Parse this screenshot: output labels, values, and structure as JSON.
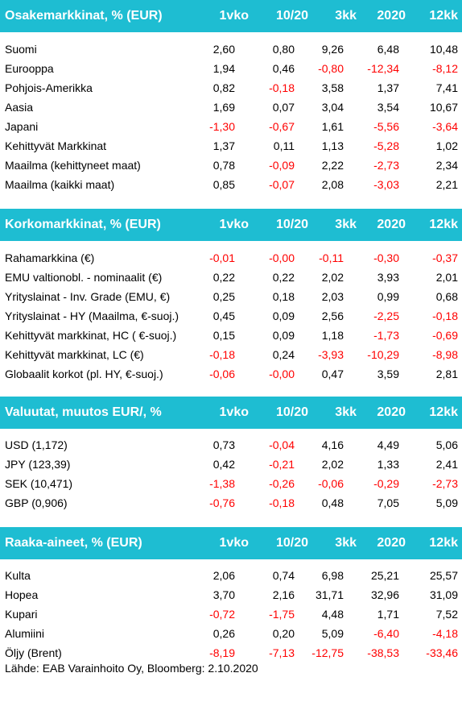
{
  "sections": [
    {
      "title": "Osakemarkkinat, % (EUR)",
      "columns": [
        "1vko",
        "10/20",
        "3kk",
        "2020",
        "12kk"
      ],
      "rows": [
        {
          "label": "Suomi",
          "values": [
            "2,60",
            "0,80",
            "9,26",
            "6,48",
            "10,48"
          ]
        },
        {
          "label": "Eurooppa",
          "values": [
            "1,94",
            "0,46",
            "-0,80",
            "-12,34",
            "-8,12"
          ]
        },
        {
          "label": "Pohjois-Amerikka",
          "values": [
            "0,82",
            "-0,18",
            "3,58",
            "1,37",
            "7,41"
          ]
        },
        {
          "label": "Aasia",
          "values": [
            "1,69",
            "0,07",
            "3,04",
            "3,54",
            "10,67"
          ]
        },
        {
          "label": "Japani",
          "values": [
            "-1,30",
            "-0,67",
            "1,61",
            "-5,56",
            "-3,64"
          ]
        },
        {
          "label": "Kehittyvät Markkinat",
          "values": [
            "1,37",
            "0,11",
            "1,13",
            "-5,28",
            "1,02"
          ]
        },
        {
          "label": "Maailma (kehittyneet maat)",
          "values": [
            "0,78",
            "-0,09",
            "2,22",
            "-2,73",
            "2,34"
          ]
        },
        {
          "label": "Maailma (kaikki maat)",
          "values": [
            "0,85",
            "-0,07",
            "2,08",
            "-3,03",
            "2,21"
          ]
        }
      ]
    },
    {
      "title": "Korkomarkkinat, % (EUR)",
      "columns": [
        "1vko",
        "10/20",
        "3kk",
        "2020",
        "12kk"
      ],
      "rows": [
        {
          "label": "Rahamarkkina (€)",
          "values": [
            "-0,01",
            "-0,00",
            "-0,11",
            "-0,30",
            "-0,37"
          ]
        },
        {
          "label": "EMU valtionobl. - nominaalit (€)",
          "values": [
            "0,22",
            "0,22",
            "2,02",
            "3,93",
            "2,01"
          ]
        },
        {
          "label": "Yrityslainat - Inv. Grade (EMU, €)",
          "values": [
            "0,25",
            "0,18",
            "2,03",
            "0,99",
            "0,68"
          ]
        },
        {
          "label": "Yrityslainat - HY (Maailma, €-suoj.)",
          "values": [
            "0,45",
            "0,09",
            "2,56",
            "-2,25",
            "-0,18"
          ]
        },
        {
          "label": "Kehittyvät markkinat, HC ( €-suoj.)",
          "values": [
            "0,15",
            "0,09",
            "1,18",
            "-1,73",
            "-0,69"
          ]
        },
        {
          "label": "Kehittyvät markkinat, LC (€)",
          "values": [
            "-0,18",
            "0,24",
            "-3,93",
            "-10,29",
            "-8,98"
          ]
        },
        {
          "label": "Globaalit korkot (pl. HY,  €-suoj.)",
          "values": [
            "-0,06",
            "-0,00",
            "0,47",
            "3,59",
            "2,81"
          ]
        }
      ]
    },
    {
      "title": "Valuutat, muutos EUR/,  %",
      "columns": [
        "1vko",
        "10/20",
        "3kk",
        "2020",
        "12kk"
      ],
      "rows": [
        {
          "label": "USD (1,172)",
          "values": [
            "0,73",
            "-0,04",
            "4,16",
            "4,49",
            "5,06"
          ]
        },
        {
          "label": "JPY (123,39)",
          "values": [
            "0,42",
            "-0,21",
            "2,02",
            "1,33",
            "2,41"
          ]
        },
        {
          "label": "SEK (10,471)",
          "values": [
            "-1,38",
            "-0,26",
            "-0,06",
            "-0,29",
            "-2,73"
          ]
        },
        {
          "label": "GBP (0,906)",
          "values": [
            "-0,76",
            "-0,18",
            "0,48",
            "7,05",
            "5,09"
          ]
        }
      ]
    },
    {
      "title": "Raaka-aineet, % (EUR)",
      "columns": [
        "1vko",
        "10/20",
        "3kk",
        "2020",
        "12kk"
      ],
      "rows": [
        {
          "label": "Kulta",
          "values": [
            "2,06",
            "0,74",
            "6,98",
            "25,21",
            "25,57"
          ]
        },
        {
          "label": "Hopea",
          "values": [
            "3,70",
            "2,16",
            "31,71",
            "32,96",
            "31,09"
          ]
        },
        {
          "label": "Kupari",
          "values": [
            "-0,72",
            "-1,75",
            "4,48",
            "1,71",
            "7,52"
          ]
        },
        {
          "label": "Alumiini",
          "values": [
            "0,26",
            "0,20",
            "5,09",
            "-6,40",
            "-4,18"
          ]
        },
        {
          "label": "Öljy (Brent)",
          "values": [
            "-8,19",
            "-7,13",
            "-12,75",
            "-38,53",
            "-33,46"
          ]
        }
      ]
    }
  ],
  "source": "Lähde: EAB Varainhoito Oy, Bloomberg: 2.10.2020",
  "colors": {
    "header_bg": "#1ebdd2",
    "negative": "#ff0000"
  }
}
